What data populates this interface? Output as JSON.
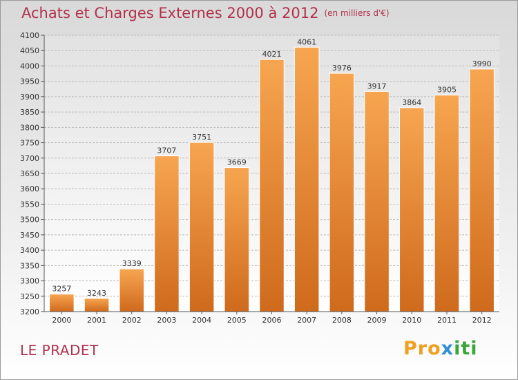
{
  "title": "Achats et Charges Externes 2000 à 2012",
  "subtitle": "(en milliers d'€)",
  "location": "LE PRADET",
  "logo": {
    "part1": "Pro",
    "part2": "x",
    "part3": "iti"
  },
  "colors": {
    "bar_light": "#f7a550",
    "bar_dark": "#cf6a1c",
    "title": "#b0304a",
    "grid": "#b9b9b9"
  },
  "chart_data": {
    "type": "bar",
    "title": "Achats et Charges Externes 2000 à 2012",
    "subtitle": "(en milliers d'€)",
    "categories": [
      "2000",
      "2001",
      "2002",
      "2003",
      "2004",
      "2005",
      "2006",
      "2007",
      "2008",
      "2009",
      "2010",
      "2011",
      "2012"
    ],
    "values": [
      3257,
      3243,
      3339,
      3707,
      3751,
      3669,
      4021,
      4061,
      3976,
      3917,
      3864,
      3905,
      3990
    ],
    "ylim": [
      3200,
      4100
    ],
    "yticks": [
      3200,
      3250,
      3300,
      3350,
      3400,
      3450,
      3500,
      3550,
      3600,
      3650,
      3700,
      3750,
      3800,
      3850,
      3900,
      3950,
      4000,
      4050,
      4100
    ],
    "grid": true,
    "data_labels": true
  }
}
